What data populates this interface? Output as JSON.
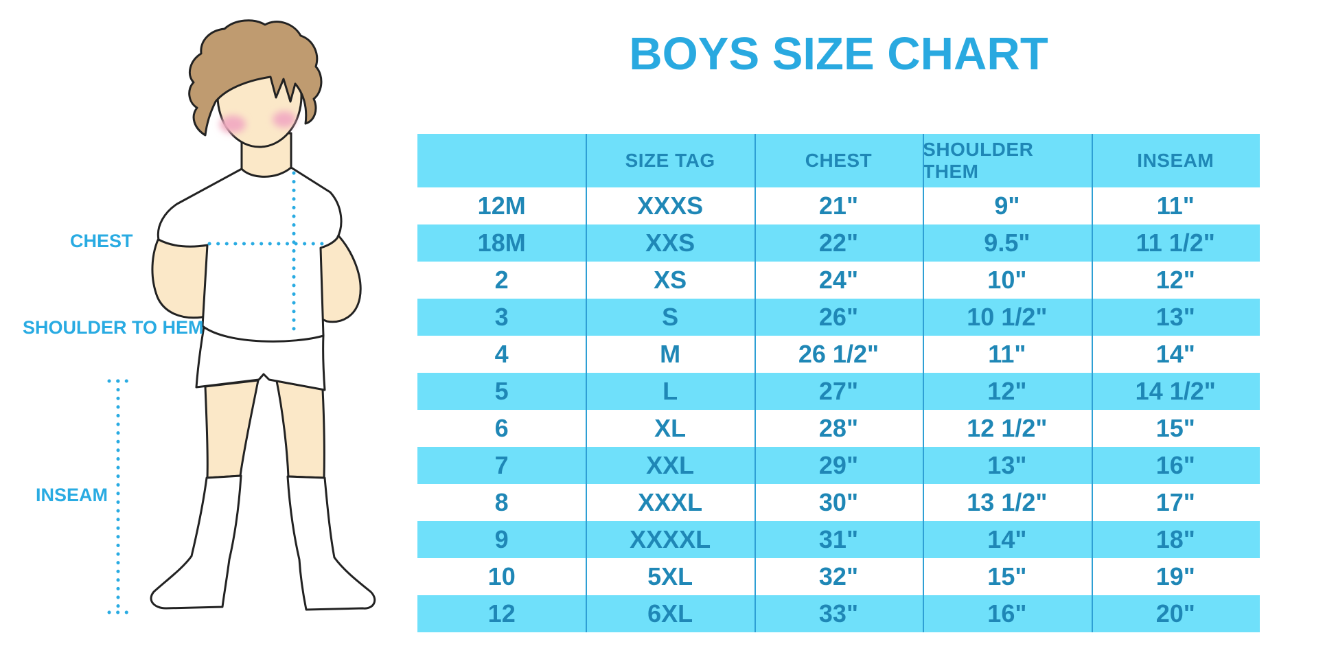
{
  "title": "BOYS SIZE CHART",
  "figure": {
    "labels": {
      "chest": "CHEST",
      "shoulder_to_hem": "SHOULDER TO HEM",
      "inseam": "INSEAM"
    }
  },
  "chart_data": {
    "type": "table",
    "title": "BOYS SIZE CHART",
    "columns": [
      "",
      "SIZE TAG",
      "CHEST",
      "SHOULDER THEM",
      "INSEAM"
    ],
    "rows": [
      [
        "12M",
        "XXXS",
        "21\"",
        "9\"",
        "11\""
      ],
      [
        "18M",
        "XXS",
        "22\"",
        "9.5\"",
        "11 1/2\""
      ],
      [
        "2",
        "XS",
        "24\"",
        "10\"",
        "12\""
      ],
      [
        "3",
        "S",
        "26\"",
        "10 1/2\"",
        "13\""
      ],
      [
        "4",
        "M",
        "26 1/2\"",
        "11\"",
        "14\""
      ],
      [
        "5",
        "L",
        "27\"",
        "12\"",
        "14 1/2\""
      ],
      [
        "6",
        "XL",
        "28\"",
        "12 1/2\"",
        "15\""
      ],
      [
        "7",
        "XXL",
        "29\"",
        "13\"",
        "16\""
      ],
      [
        "8",
        "XXXL",
        "30\"",
        "13 1/2\"",
        "17\""
      ],
      [
        "9",
        "XXXXL",
        "31\"",
        "14\"",
        "18\""
      ],
      [
        "10",
        "5XL",
        "32\"",
        "15\"",
        "19\""
      ],
      [
        "12",
        "6XL",
        "33\"",
        "16\"",
        "20\""
      ]
    ],
    "row_stripe_pattern": "white/blue alternating, header blue",
    "grid": "vertical separators only"
  },
  "colors": {
    "title_blue": "#29A9E0",
    "band_blue": "#6FE0FA",
    "table_text_blue": "#1F87B6",
    "separator_blue": "#2E9FD4",
    "label_blue": "#29ABE2",
    "dotted_line_blue": "#29ABE2",
    "hair_brown": "#BF9B70",
    "skin": "#FBE8C8",
    "blush_pink": "#F2AEC2",
    "outline": "#222222"
  }
}
